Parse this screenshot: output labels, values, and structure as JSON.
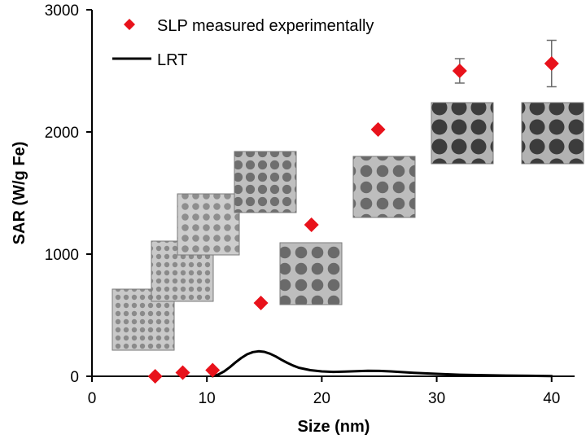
{
  "chart_data": {
    "type": "scatter",
    "title": "",
    "xlabel": "Size (nm)",
    "ylabel": "SAR (W/g Fe)",
    "xlim": [
      0,
      42
    ],
    "ylim": [
      0,
      3000
    ],
    "xticks": [
      0,
      10,
      20,
      30,
      40
    ],
    "yticks": [
      0,
      1000,
      2000,
      3000
    ],
    "grid": false,
    "legend_position": "top-left",
    "colors": {
      "points": "#e8121b",
      "line": "#000000",
      "errorbar": "#6d6d6d",
      "axis": "#000000"
    },
    "series": [
      {
        "name": "SLP measured experimentally",
        "kind": "scatter",
        "marker": "diamond",
        "x": [
          5.5,
          7.9,
          10.5,
          14.7,
          19.1,
          24.9,
          32.0,
          40.0
        ],
        "y": [
          0,
          30,
          50,
          600,
          1240,
          2020,
          2500,
          2560
        ],
        "err": [
          0,
          0,
          0,
          0,
          0,
          0,
          100,
          190
        ]
      },
      {
        "name": "LRT",
        "kind": "line",
        "x": [
          10.5,
          11,
          11.5,
          12,
          12.5,
          13,
          13.5,
          14,
          14.5,
          15,
          15.5,
          16,
          16.5,
          17,
          17.5,
          18,
          19,
          20,
          21,
          22,
          23,
          24,
          25,
          26,
          27,
          28,
          30,
          32,
          34,
          36,
          38,
          40
        ],
        "y": [
          0,
          15,
          40,
          75,
          115,
          150,
          180,
          198,
          205,
          200,
          185,
          162,
          135,
          110,
          88,
          70,
          50,
          40,
          36,
          38,
          42,
          45,
          44,
          40,
          34,
          28,
          20,
          13,
          9,
          6,
          4,
          2
        ]
      }
    ],
    "insets": [
      {
        "name": "tem-inset-1",
        "size_nm": 5.5,
        "tone": "fine"
      },
      {
        "name": "tem-inset-2",
        "size_nm": 7.9,
        "tone": "fine"
      },
      {
        "name": "tem-inset-3",
        "size_nm": 10.5,
        "tone": "fine"
      },
      {
        "name": "tem-inset-4",
        "size_nm": 14.7,
        "tone": "medium"
      },
      {
        "name": "tem-inset-5",
        "size_nm": 19.1,
        "tone": "medium"
      },
      {
        "name": "tem-inset-6",
        "size_nm": 24.9,
        "tone": "medium"
      },
      {
        "name": "tem-inset-7",
        "size_nm": 32.0,
        "tone": "coarse"
      },
      {
        "name": "tem-inset-8",
        "size_nm": 40.0,
        "tone": "coarse"
      }
    ]
  }
}
